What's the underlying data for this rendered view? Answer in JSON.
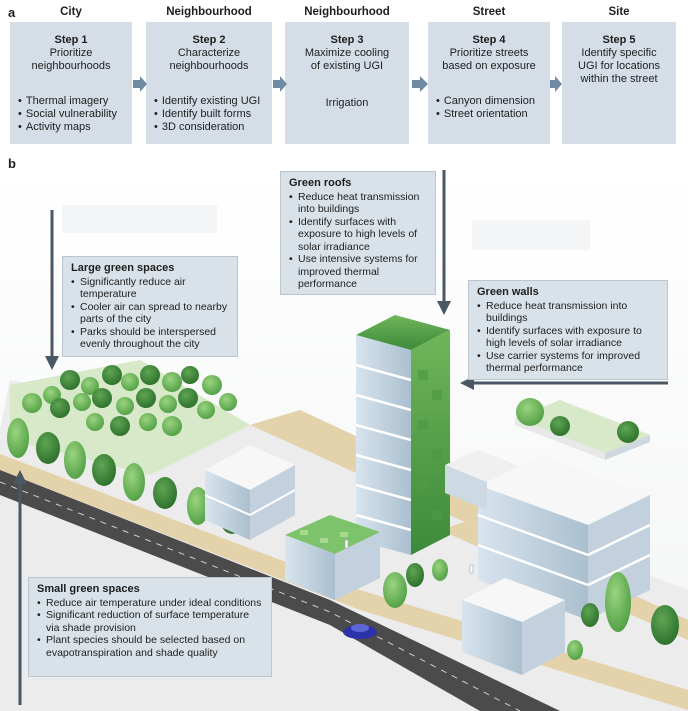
{
  "panel_a_label": "a",
  "panel_b_label": "b",
  "columns": [
    "City",
    "Neighbourhood",
    "Neighbourhood",
    "Street",
    "Site"
  ],
  "steps": [
    {
      "title": "Step 1",
      "desc": [
        "Prioritize",
        "neighbourhoods"
      ],
      "bullets": [
        "Thermal imagery",
        "Social vulnerability",
        "Activity maps"
      ]
    },
    {
      "title": "Step 2",
      "desc": [
        "Characterize",
        "neighbourhoods"
      ],
      "bullets": [
        "Identify existing UGI",
        "Identify built forms",
        "3D consideration"
      ]
    },
    {
      "title": "Step 3",
      "desc": [
        "Maximize cooling",
        "of existing UGI"
      ],
      "plain": "Irrigation"
    },
    {
      "title": "Step 4",
      "desc": [
        "Prioritize streets",
        "based on exposure"
      ],
      "bullets": [
        "Canyon dimension",
        "Street orientation"
      ]
    },
    {
      "title": "Step 5",
      "desc": [
        "Identify specific",
        "UGI for locations",
        "within the street"
      ]
    }
  ],
  "callouts": {
    "green_roofs": {
      "title": "Green roofs",
      "items": [
        "Reduce heat transmission into buildings",
        "Identify surfaces with exposure to high levels of solar irradiance",
        "Use intensive systems for improved thermal performance"
      ]
    },
    "large_green": {
      "title": "Large green spaces",
      "items": [
        "Significantly reduce air temperature",
        "Cooler air can spread to nearby parts of the city",
        "Parks should be interspersed evenly throughout the city"
      ]
    },
    "green_walls": {
      "title": "Green walls",
      "items": [
        "Reduce heat transmission into buildings",
        "Identify surfaces with exposure to high levels of solar irradiance",
        "Use carrier systems for improved thermal performance"
      ]
    },
    "small_green": {
      "title": "Small green spaces",
      "items": [
        "Reduce air temperature under ideal conditions",
        "Significant reduction of surface temperature via shade provision",
        "Plant species should be selected based on evapotranspiration and shade quality"
      ]
    }
  },
  "colors": {
    "box": "#d5dee6",
    "arrow": "#6f8ba3",
    "callout_arrow": "#4a5866",
    "tree_light": "#7cc36b",
    "tree_dark": "#3e8f3b",
    "road": "#4b4b4b",
    "sidewalk": "#e3d2aa"
  }
}
